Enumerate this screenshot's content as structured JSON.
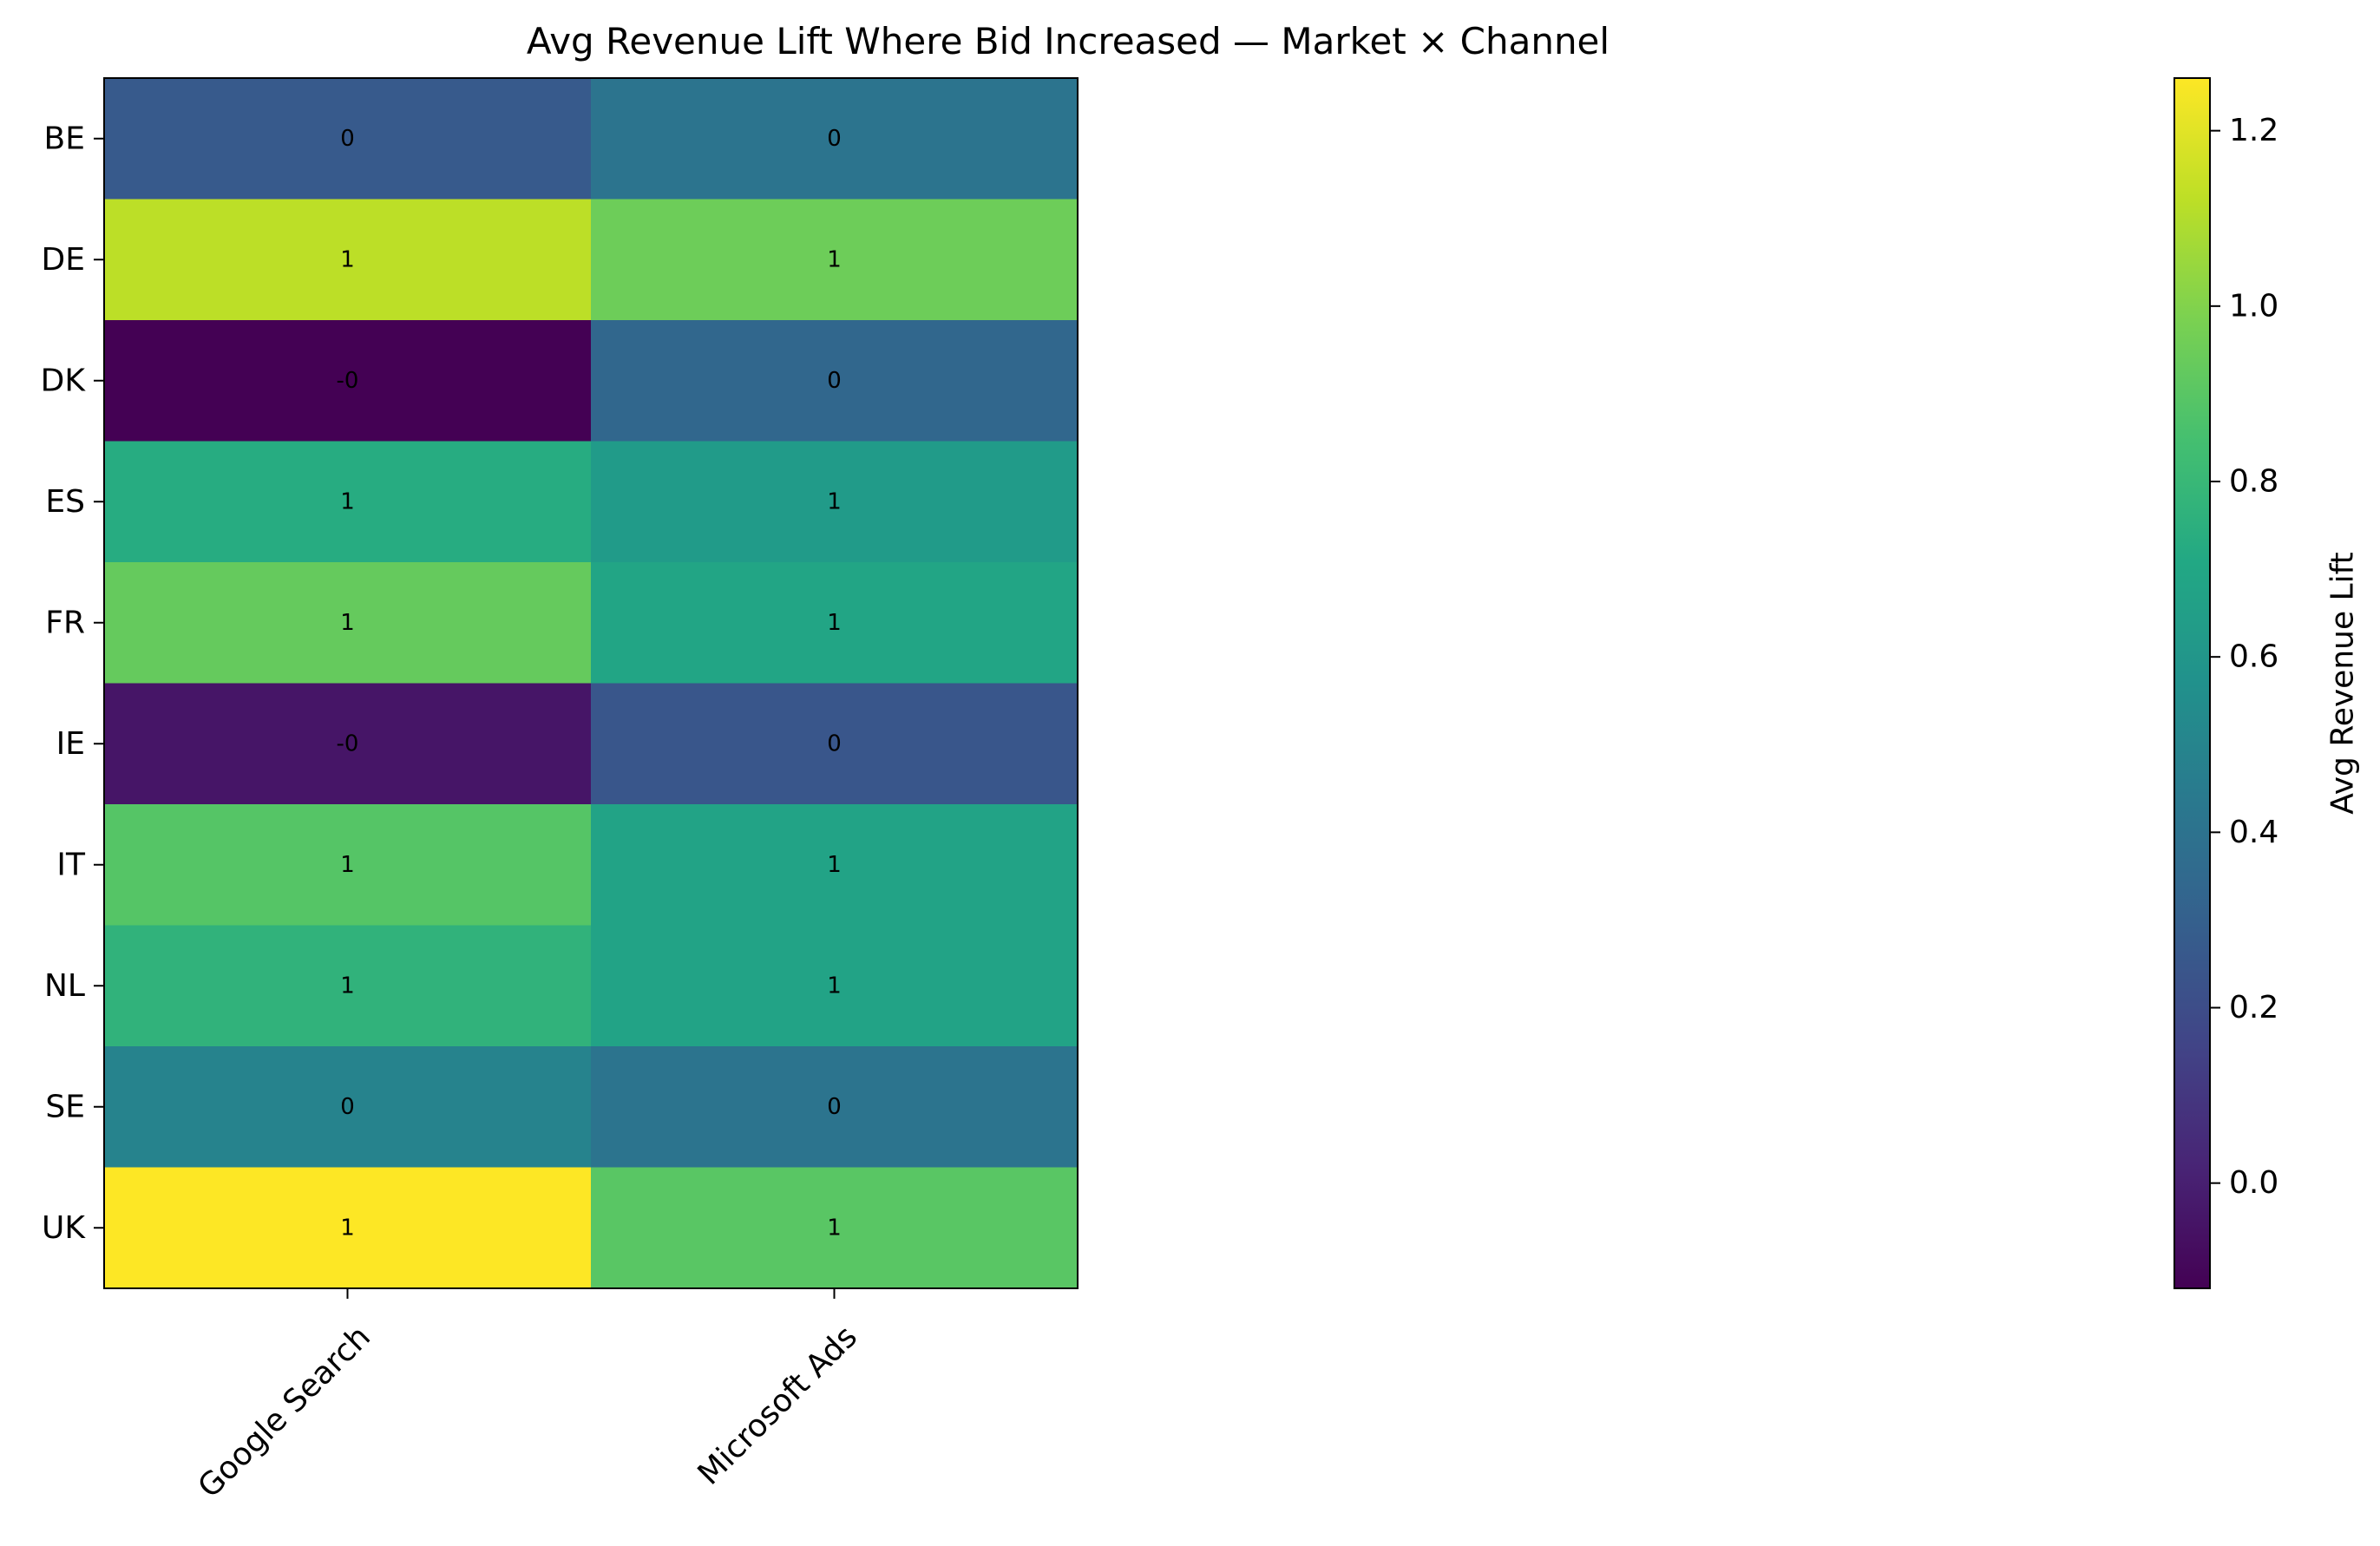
{
  "chart_data": {
    "type": "heatmap",
    "title": "Avg Revenue Lift Where Bid Increased — Market × Channel",
    "xlabel": "",
    "ylabel": "",
    "columns": [
      "Google Search",
      "Microsoft Ads"
    ],
    "rows": [
      "BE",
      "DE",
      "DK",
      "ES",
      "FR",
      "IE",
      "IT",
      "NL",
      "SE",
      "UK"
    ],
    "values": [
      [
        0.27,
        0.41
      ],
      [
        1.12,
        0.95
      ],
      [
        -0.12,
        0.34
      ],
      [
        0.73,
        0.63
      ],
      [
        0.93,
        0.69
      ],
      [
        -0.04,
        0.25
      ],
      [
        0.89,
        0.68
      ],
      [
        0.77,
        0.68
      ],
      [
        0.49,
        0.41
      ],
      [
        1.26,
        0.9
      ]
    ],
    "cell_labels": [
      [
        "0",
        "0"
      ],
      [
        "1",
        "1"
      ],
      [
        "-0",
        "0"
      ],
      [
        "1",
        "1"
      ],
      [
        "1",
        "1"
      ],
      [
        "-0",
        "0"
      ],
      [
        "1",
        "1"
      ],
      [
        "1",
        "1"
      ],
      [
        "0",
        "0"
      ],
      [
        "1",
        "1"
      ]
    ],
    "colormap": "viridis",
    "vmin": -0.12,
    "vmax": 1.26,
    "colorbar": {
      "label": "Avg Revenue Lift",
      "ticks": [
        0.0,
        0.2,
        0.4,
        0.6,
        0.8,
        1.0,
        1.2
      ],
      "tick_labels": [
        "0.0",
        "0.2",
        "0.4",
        "0.6",
        "0.8",
        "1.0",
        "1.2"
      ]
    },
    "grid": false
  }
}
